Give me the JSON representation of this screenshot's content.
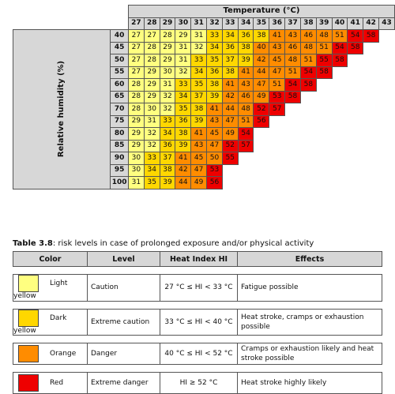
{
  "heat_index": {
    "temperature_title": "Temperature (°C)",
    "humidity_title": "Relative humidity (%)",
    "temperatures": [
      "27",
      "28",
      "29",
      "30",
      "31",
      "32",
      "33",
      "34",
      "35",
      "36",
      "37",
      "38",
      "39",
      "40",
      "41",
      "42",
      "43"
    ],
    "rows": [
      {
        "rh": "40",
        "values": [
          "27",
          "27",
          "28",
          "29",
          "31",
          "33",
          "34",
          "36",
          "38",
          "41",
          "43",
          "46",
          "48",
          "51",
          "54",
          "58"
        ]
      },
      {
        "rh": "45",
        "values": [
          "27",
          "28",
          "29",
          "31",
          "32",
          "34",
          "36",
          "38",
          "40",
          "43",
          "46",
          "48",
          "51",
          "54",
          "58"
        ]
      },
      {
        "rh": "50",
        "values": [
          "27",
          "28",
          "29",
          "31",
          "33",
          "35",
          "37",
          "39",
          "42",
          "45",
          "48",
          "51",
          "55",
          "58"
        ]
      },
      {
        "rh": "55",
        "values": [
          "27",
          "29",
          "30",
          "32",
          "34",
          "36",
          "38",
          "41",
          "44",
          "47",
          "51",
          "54",
          "58"
        ]
      },
      {
        "rh": "60",
        "values": [
          "28",
          "29",
          "31",
          "33",
          "35",
          "38",
          "41",
          "43",
          "47",
          "51",
          "54",
          "58"
        ]
      },
      {
        "rh": "65",
        "values": [
          "28",
          "29",
          "32",
          "34",
          "37",
          "39",
          "42",
          "46",
          "49",
          "53",
          "58"
        ]
      },
      {
        "rh": "70",
        "values": [
          "28",
          "30",
          "32",
          "35",
          "38",
          "41",
          "44",
          "48",
          "52",
          "57"
        ]
      },
      {
        "rh": "75",
        "values": [
          "29",
          "31",
          "33",
          "36",
          "39",
          "43",
          "47",
          "51",
          "56"
        ]
      },
      {
        "rh": "80",
        "values": [
          "29",
          "32",
          "34",
          "38",
          "41",
          "45",
          "49",
          "54"
        ]
      },
      {
        "rh": "85",
        "values": [
          "29",
          "32",
          "36",
          "39",
          "43",
          "47",
          "52",
          "57"
        ]
      },
      {
        "rh": "90",
        "values": [
          "30",
          "33",
          "37",
          "41",
          "45",
          "50",
          "55"
        ]
      },
      {
        "rh": "95",
        "values": [
          "30",
          "34",
          "38",
          "42",
          "47",
          "53"
        ]
      },
      {
        "rh": "100",
        "values": [
          "31",
          "35",
          "39",
          "44",
          "49",
          "56"
        ]
      }
    ],
    "colors": {
      "light_yellow": "#ffff80",
      "dark_yellow": "#ffd700",
      "orange": "#ff8c00",
      "red": "#ee0000"
    }
  },
  "caption": {
    "label": "Table 3.8",
    "text": ": risk levels in case of prolonged exposure and/or physical activity"
  },
  "risk_table": {
    "headers": [
      "Color",
      "Level",
      "Heat Index HI",
      "Effects"
    ],
    "rows": [
      {
        "color_name": "Light yellow",
        "swatch": "#ffff80",
        "level": "Caution",
        "range": "27 °C ≤ HI < 33 °C",
        "effects": "Fatigue possible"
      },
      {
        "color_name": "Dark yellow",
        "swatch": "#ffd700",
        "level": "Extreme caution",
        "range": "33 °C ≤ HI < 40 °C",
        "effects": "Heat stroke, cramps or exhaustion possible"
      },
      {
        "color_name": "Orange",
        "swatch": "#ff8c00",
        "level": "Danger",
        "range": "40 °C ≤ HI < 52 °C",
        "effects": "Cramps or exhaustion likely and heat stroke possible"
      },
      {
        "color_name": "Red",
        "swatch": "#ee0000",
        "level": "Extreme danger",
        "range": "HI ≥ 52 °C",
        "effects": "Heat stroke highly likely"
      }
    ]
  }
}
